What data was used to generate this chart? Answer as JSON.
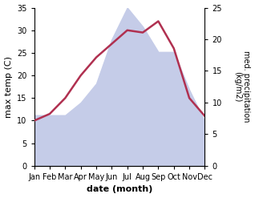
{
  "months": [
    "Jan",
    "Feb",
    "Mar",
    "Apr",
    "May",
    "Jun",
    "Jul",
    "Aug",
    "Sep",
    "Oct",
    "Nov",
    "Dec"
  ],
  "temp": [
    10,
    11.5,
    15,
    20,
    24,
    27,
    30,
    29.5,
    32,
    26,
    15,
    11
  ],
  "precip": [
    8,
    8,
    8,
    10,
    13,
    20,
    25,
    22,
    18,
    18,
    12,
    7
  ],
  "temp_ylim": [
    0,
    35
  ],
  "precip_ylim": [
    0,
    25
  ],
  "temp_color": "#b03050",
  "precip_fill_color": "#c5cce8",
  "xlabel": "date (month)",
  "ylabel_left": "max temp (C)",
  "ylabel_right": "med. precipitation\n(kg/m2)",
  "bg_color": "#ffffff",
  "temp_linewidth": 1.8,
  "label_fontsize": 8,
  "tick_fontsize": 7
}
